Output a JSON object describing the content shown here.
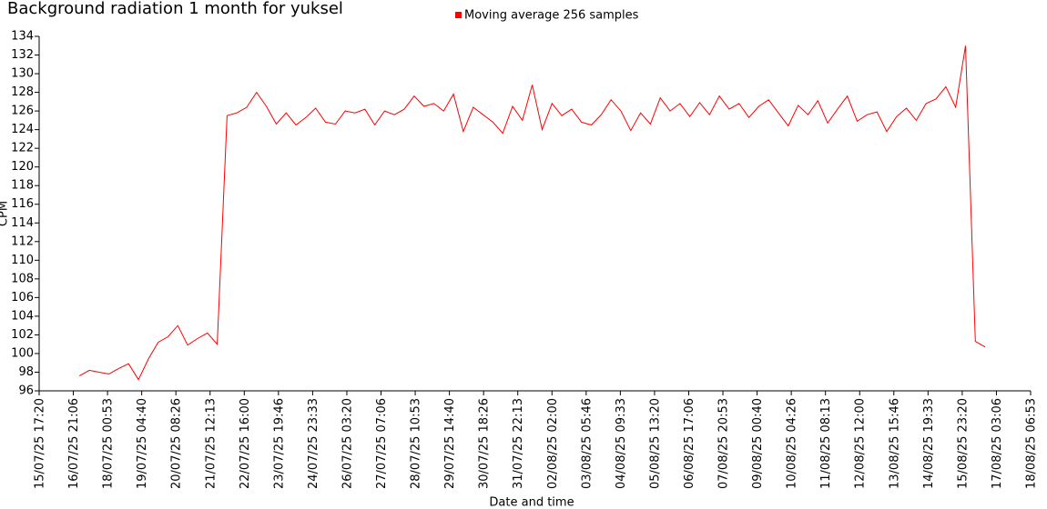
{
  "chart_data": {
    "type": "line",
    "title": "Background radiation 1 month for yuksel",
    "xlabel": "Date and time",
    "ylabel": "CPM",
    "legend": "top",
    "grid": false,
    "xlim": [
      "15/07/25 17:20",
      "18/08/25 06:53"
    ],
    "xticks": [
      "15/07/25 17:20",
      "16/07/25 21:06",
      "18/07/25 00:53",
      "19/07/25 04:40",
      "20/07/25 08:26",
      "21/07/25 12:13",
      "22/07/25 16:00",
      "23/07/25 19:46",
      "24/07/25 23:33",
      "26/07/25 03:20",
      "27/07/25 07:06",
      "28/07/25 10:53",
      "29/07/25 14:40",
      "30/07/25 18:26",
      "31/07/25 22:13",
      "02/08/25 02:00",
      "03/08/25 05:46",
      "04/08/25 09:33",
      "05/08/25 13:20",
      "06/08/25 17:06",
      "07/08/25 20:53",
      "09/08/25 00:40",
      "10/08/25 04:26",
      "11/08/25 08:13",
      "12/08/25 12:00",
      "13/08/25 15:46",
      "14/08/25 19:33",
      "15/08/25 23:20",
      "17/08/25 03:06",
      "18/08/25 06:53"
    ],
    "ylim": [
      96,
      134
    ],
    "yticks": [
      96,
      98,
      100,
      102,
      104,
      106,
      108,
      110,
      112,
      114,
      116,
      118,
      120,
      122,
      124,
      126,
      128,
      130,
      132,
      134
    ],
    "x": [
      "17/07/25 02:00",
      "17/07/25 10:00",
      "17/07/25 18:00",
      "18/07/25 02:00",
      "18/07/25 10:00",
      "18/07/25 18:00",
      "19/07/25 02:00",
      "19/07/25 10:00",
      "19/07/25 18:00",
      "20/07/25 02:00",
      "20/07/25 10:00",
      "20/07/25 18:00",
      "21/07/25 02:00",
      "21/07/25 10:00",
      "21/07/25 18:00",
      "22/07/25 02:00",
      "22/07/25 10:00",
      "22/07/25 18:00",
      "23/07/25 02:00",
      "23/07/25 10:00",
      "23/07/25 18:00",
      "24/07/25 02:00",
      "24/07/25 10:00",
      "24/07/25 18:00",
      "25/07/25 02:00",
      "25/07/25 10:00",
      "25/07/25 18:00",
      "26/07/25 02:00",
      "26/07/25 10:00",
      "26/07/25 18:00",
      "27/07/25 02:00",
      "27/07/25 10:00",
      "27/07/25 18:00",
      "28/07/25 02:00",
      "28/07/25 10:00",
      "28/07/25 18:00",
      "29/07/25 02:00",
      "29/07/25 10:00",
      "29/07/25 18:00",
      "30/07/25 02:00",
      "30/07/25 10:00",
      "30/07/25 18:00",
      "31/07/25 02:00",
      "31/07/25 10:00",
      "31/07/25 18:00",
      "01/08/25 02:00",
      "01/08/25 10:00",
      "01/08/25 18:00",
      "02/08/25 02:00",
      "02/08/25 10:00",
      "02/08/25 18:00",
      "03/08/25 02:00",
      "03/08/25 10:00",
      "03/08/25 18:00",
      "04/08/25 02:00",
      "04/08/25 10:00",
      "04/08/25 18:00",
      "05/08/25 02:00",
      "05/08/25 10:00",
      "05/08/25 18:00",
      "06/08/25 02:00",
      "06/08/25 10:00",
      "06/08/25 18:00",
      "07/08/25 02:00",
      "07/08/25 10:00",
      "07/08/25 18:00",
      "08/08/25 02:00",
      "08/08/25 10:00",
      "08/08/25 18:00",
      "09/08/25 02:00",
      "09/08/25 10:00",
      "09/08/25 18:00",
      "10/08/25 02:00",
      "10/08/25 10:00",
      "10/08/25 18:00",
      "11/08/25 02:00",
      "11/08/25 10:00",
      "11/08/25 18:00",
      "12/08/25 02:00",
      "12/08/25 10:00",
      "12/08/25 18:00",
      "13/08/25 02:00",
      "13/08/25 10:00",
      "13/08/25 18:00",
      "14/08/25 02:00",
      "14/08/25 10:00",
      "14/08/25 18:00",
      "15/08/25 02:00",
      "15/08/25 10:00",
      "15/08/25 18:00",
      "16/08/25 02:00",
      "16/08/25 10:00",
      "16/08/25 18:00"
    ],
    "series": [
      {
        "name": "Moving average 256 samples",
        "color": "#ff0000",
        "values": [
          97.6,
          98.2,
          98.0,
          97.8,
          98.4,
          98.9,
          97.2,
          99.4,
          101.2,
          101.8,
          103.0,
          100.9,
          101.6,
          102.2,
          101.0,
          125.5,
          125.8,
          126.4,
          128.0,
          126.5,
          124.6,
          125.8,
          124.5,
          125.3,
          126.3,
          124.8,
          124.6,
          126.0,
          125.8,
          126.2,
          124.5,
          126.0,
          125.6,
          126.2,
          127.6,
          126.5,
          126.8,
          126.0,
          127.8,
          123.8,
          126.4,
          125.6,
          124.8,
          123.6,
          126.5,
          125.0,
          128.8,
          124.0,
          126.8,
          125.5,
          126.2,
          124.8,
          124.5,
          125.6,
          127.2,
          126.0,
          123.9,
          125.8,
          124.6,
          127.4,
          126.0,
          126.8,
          125.4,
          126.9,
          125.6,
          127.6,
          126.2,
          126.8,
          125.3,
          126.5,
          127.2,
          125.8,
          124.4,
          126.6,
          125.6,
          127.1,
          124.7,
          126.2,
          127.6,
          124.9,
          125.6,
          125.9,
          123.8,
          125.4,
          126.3,
          125.0,
          126.8,
          127.3,
          128.6,
          126.4,
          133.0,
          101.3,
          100.7
        ]
      }
    ]
  }
}
